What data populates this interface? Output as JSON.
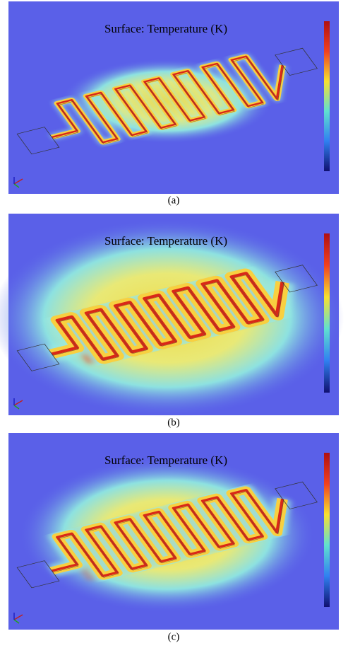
{
  "panels": [
    {
      "title": "Surface: Temperature (K)",
      "label": "(a)"
    },
    {
      "title": "Surface: Temperature (K)",
      "label": "(b)"
    },
    {
      "title": "Surface: Temperature (K)",
      "label": "(c)"
    }
  ]
}
